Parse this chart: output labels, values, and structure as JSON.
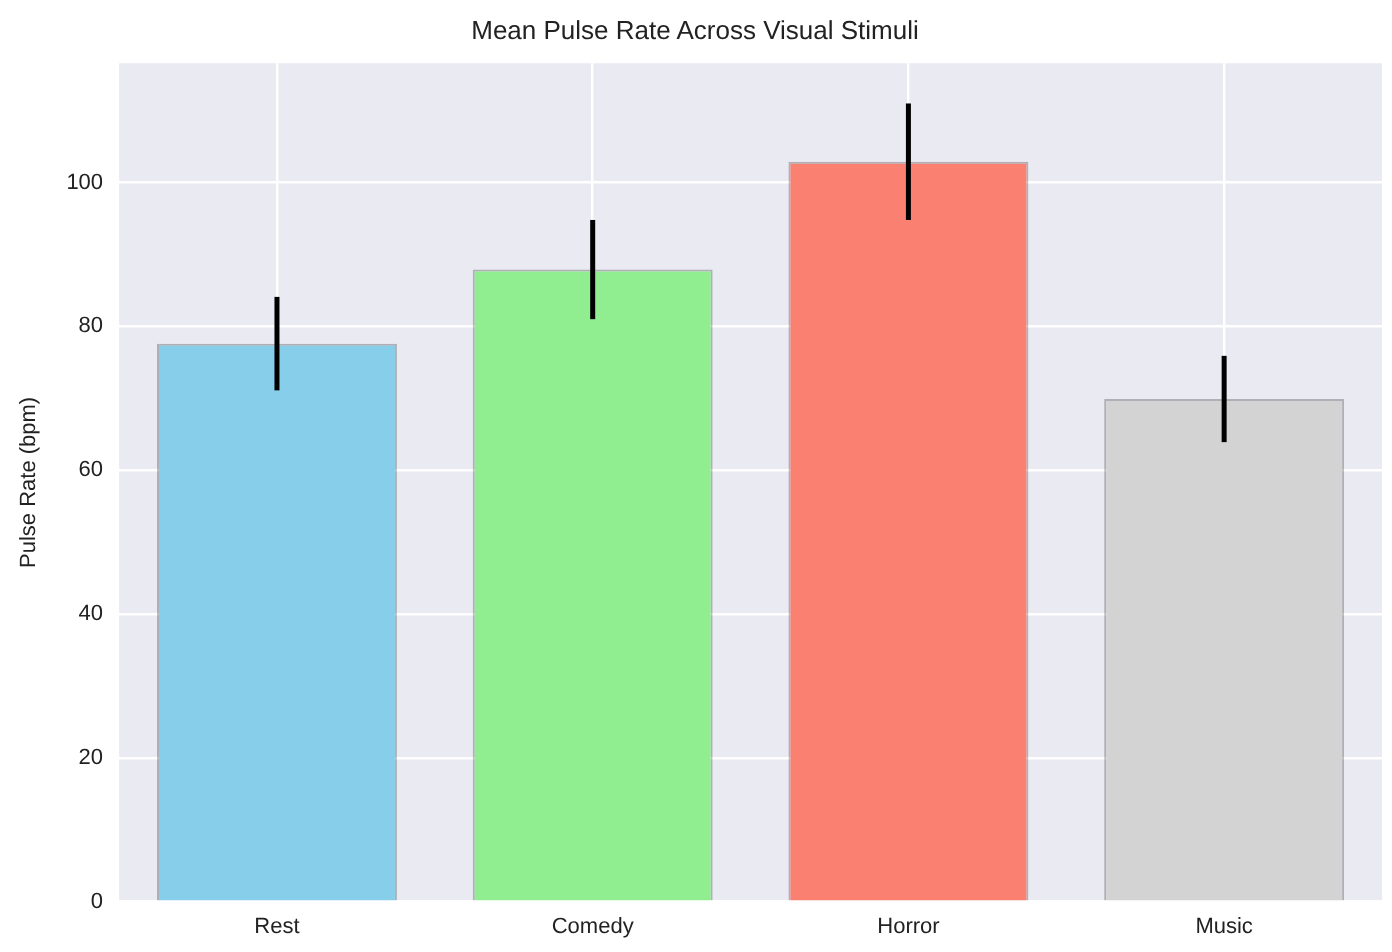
{
  "chart_data": {
    "type": "bar",
    "title": "Mean Pulse Rate Across Visual Stimuli",
    "ylabel": "Pulse Rate (bpm)",
    "categories": [
      "Rest",
      "Comedy",
      "Horror",
      "Music"
    ],
    "values": [
      77.6,
      87.9,
      102.9,
      69.9
    ],
    "errors": [
      6.5,
      6.9,
      8.1,
      6
    ],
    "colors": [
      "#87ceeb",
      "#90ee90",
      "#fa8072",
      "#d3d3d3"
    ],
    "ylim": [
      0,
      116.6
    ],
    "yticks": [
      0,
      20,
      40,
      60,
      80,
      100
    ],
    "grid": true
  }
}
